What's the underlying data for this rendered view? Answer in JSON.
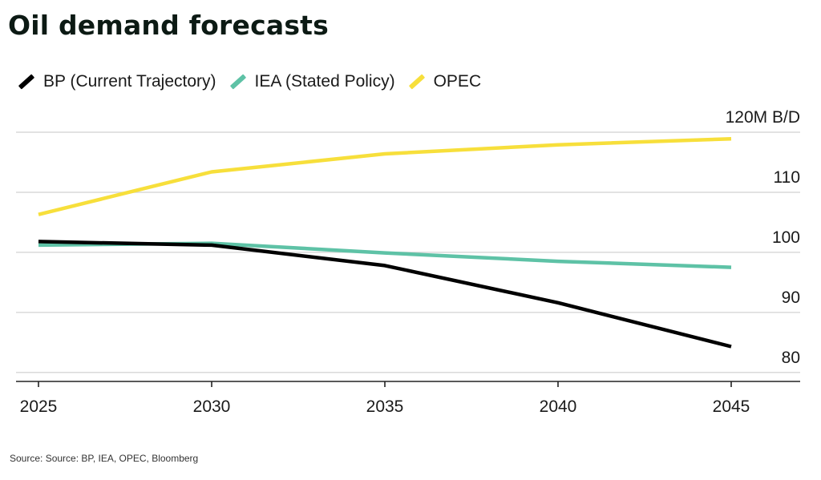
{
  "chart_data": {
    "type": "line",
    "title": "Oil demand forecasts",
    "x": [
      2025,
      2030,
      2035,
      2040,
      2045
    ],
    "x_tick_labels": [
      "2025",
      "2030",
      "2035",
      "2040",
      "2045"
    ],
    "y_tick_labels": [
      "120M B/D",
      "110",
      "100",
      "90",
      "80"
    ],
    "y_ticks": [
      120,
      110,
      100,
      90,
      80
    ],
    "ylim": [
      78.5,
      120
    ],
    "ylabel": "M B/D",
    "grid": true,
    "legend_position": "top-left",
    "series": [
      {
        "name": "BP (Current Trajectory)",
        "color": "#000000",
        "values": [
          101.8,
          101.2,
          97.8,
          91.6,
          84.3
        ]
      },
      {
        "name": "IEA (Stated Policy)",
        "color": "#5ec2a6",
        "values": [
          101.2,
          101.5,
          99.9,
          98.5,
          97.5
        ]
      },
      {
        "name": "OPEC",
        "color": "#f7df3b",
        "values": [
          106.3,
          113.4,
          116.4,
          117.9,
          118.9
        ]
      }
    ]
  },
  "source": "Source: Source: BP, IEA, OPEC, Bloomberg"
}
